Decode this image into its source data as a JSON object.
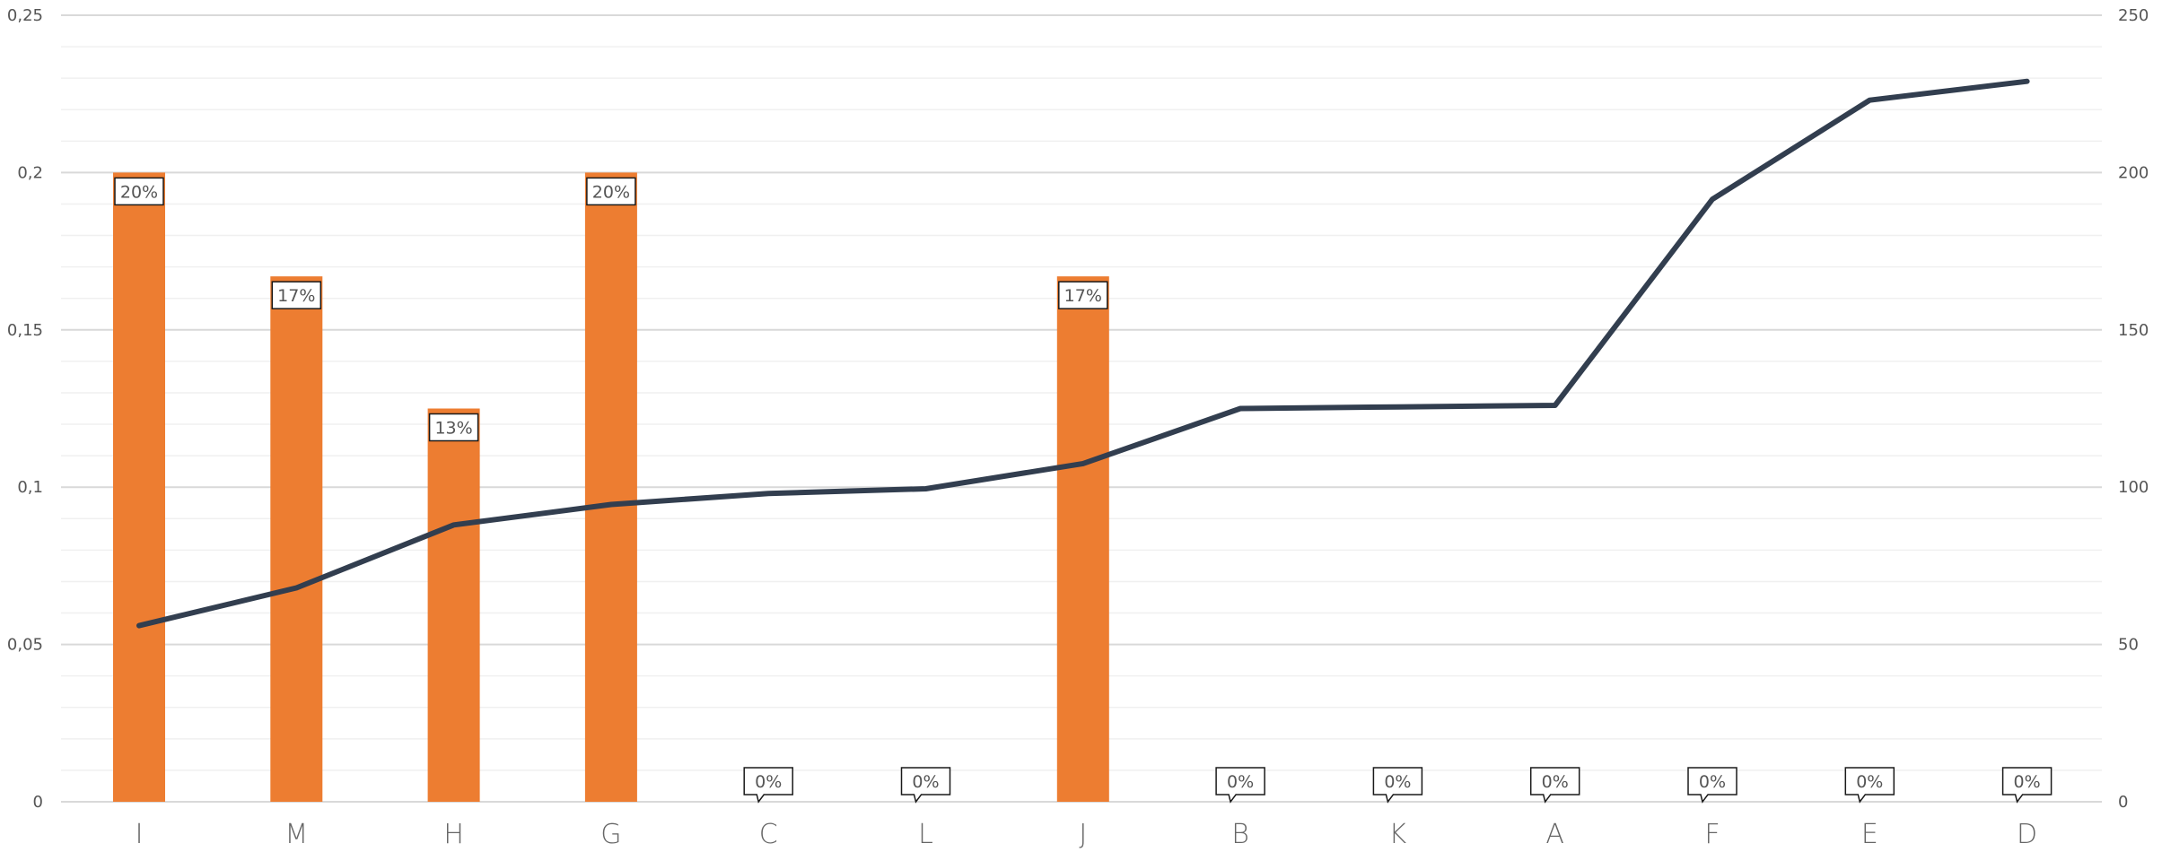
{
  "chart_data": {
    "type": "bar",
    "title": "",
    "xlabel": "",
    "ylabel": "",
    "categories": [
      "I",
      "M",
      "H",
      "G",
      "C",
      "L",
      "J",
      "B",
      "K",
      "A",
      "F",
      "E",
      "D"
    ],
    "series": [
      {
        "type": "bar",
        "axis": "left",
        "values": [
          0.2,
          0.167,
          0.125,
          0.2,
          0,
          0,
          0.167,
          0,
          0,
          0,
          0,
          0,
          0
        ],
        "labels": [
          "20%",
          "17%",
          "13%",
          "20%",
          "0%",
          "0%",
          "17%",
          "0%",
          "0%",
          "0%",
          "0%",
          "0%",
          "0%"
        ]
      },
      {
        "type": "line",
        "axis": "right",
        "values": [
          56,
          68,
          88,
          94.5,
          98,
          99.5,
          107.5,
          125,
          125.5,
          126,
          191.5,
          223,
          229
        ]
      }
    ],
    "y_left": {
      "ylim": [
        0,
        0.25
      ],
      "ticks": [
        0,
        0.05,
        0.1,
        0.15,
        0.2,
        0.25
      ],
      "tick_labels": [
        "0",
        "0,05",
        "0,1",
        "0,15",
        "0,2",
        "0,25"
      ]
    },
    "y_right": {
      "ylim": [
        0,
        250
      ],
      "ticks": [
        0,
        50,
        100,
        150,
        200,
        250
      ],
      "tick_labels": [
        "0",
        "50",
        "100",
        "150",
        "200",
        "250"
      ]
    },
    "grid": true,
    "legend": "none",
    "colors": {
      "bar": "#ED7D31",
      "line": "#323E4F",
      "major_grid": "#D9D9D9",
      "minor_grid": "#F0F0F0"
    }
  }
}
